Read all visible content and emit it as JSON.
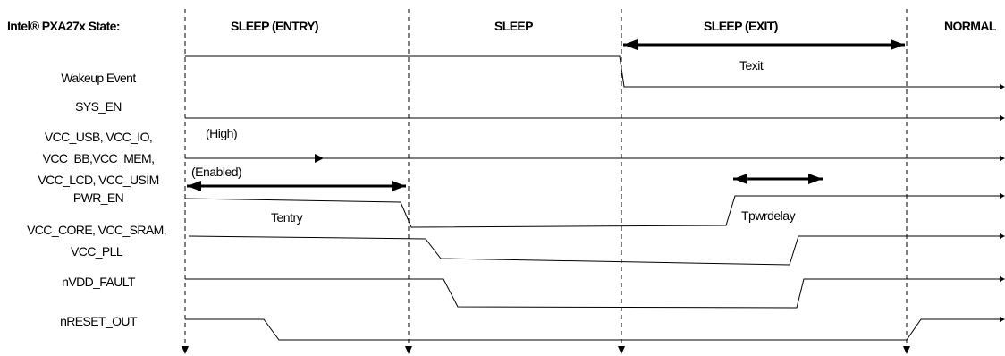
{
  "header": {
    "state_label": "Intel® PXA27x State:",
    "states": [
      "SLEEP (ENTRY)",
      "SLEEP",
      "SLEEP (EXIT)",
      "NORMAL"
    ]
  },
  "signals": [
    {
      "id": "wakeup",
      "lines": [
        "Wakeup Event"
      ]
    },
    {
      "id": "sys-en",
      "lines": [
        "SYS_EN"
      ]
    },
    {
      "id": "vcc-io-group",
      "lines": [
        "VCC_USB, VCC_IO,",
        "VCC_BB,VCC_MEM,",
        "VCC_LCD, VCC_USIM"
      ]
    },
    {
      "id": "pwr-en",
      "lines": [
        "PWR_EN"
      ]
    },
    {
      "id": "vcc-core-group",
      "lines": [
        "VCC_CORE, VCC_SRAM,",
        "VCC_PLL"
      ]
    },
    {
      "id": "nvdd-fault",
      "lines": [
        "nVDD_FAULT"
      ]
    },
    {
      "id": "nreset-out",
      "lines": [
        "nRESET_OUT"
      ]
    }
  ],
  "annotations": {
    "texit": "Texit",
    "high": "(High)",
    "enabled": "(Enabled)",
    "tentry": "Tentry",
    "tpwrdelay": "Tpwrdelay"
  }
}
